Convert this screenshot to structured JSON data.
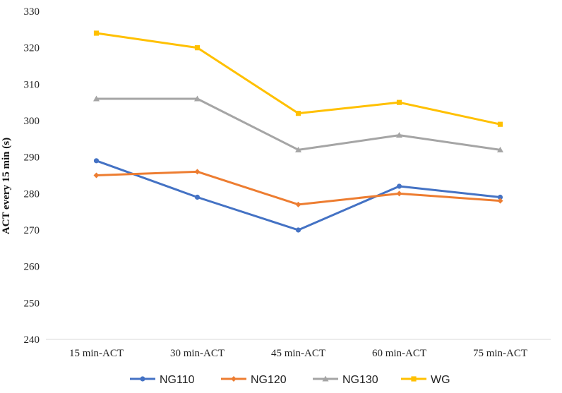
{
  "chart_data": {
    "type": "line",
    "title": "",
    "xlabel": "",
    "ylabel": "ACT every  15 min (s)",
    "categories": [
      "15 min-ACT",
      "30 min-ACT",
      "45 min-ACT",
      "60 min-ACT",
      "75 min-ACT"
    ],
    "ylim": [
      240,
      330
    ],
    "yticks": [
      240,
      250,
      260,
      270,
      280,
      290,
      300,
      310,
      320,
      330
    ],
    "grid": false,
    "legend_position": "bottom",
    "series": [
      {
        "name": "NG110",
        "color": "#4472C4",
        "marker": "circle",
        "values": [
          289,
          279,
          270,
          282,
          279
        ]
      },
      {
        "name": "NG120",
        "color": "#ED7D31",
        "marker": "diamond",
        "values": [
          285,
          286,
          277,
          280,
          278
        ]
      },
      {
        "name": "NG130",
        "color": "#A5A5A5",
        "marker": "triangle",
        "values": [
          306,
          306,
          292,
          296,
          292
        ]
      },
      {
        "name": "WG",
        "color": "#FFC000",
        "marker": "square",
        "values": [
          324,
          320,
          302,
          305,
          299
        ]
      }
    ]
  }
}
